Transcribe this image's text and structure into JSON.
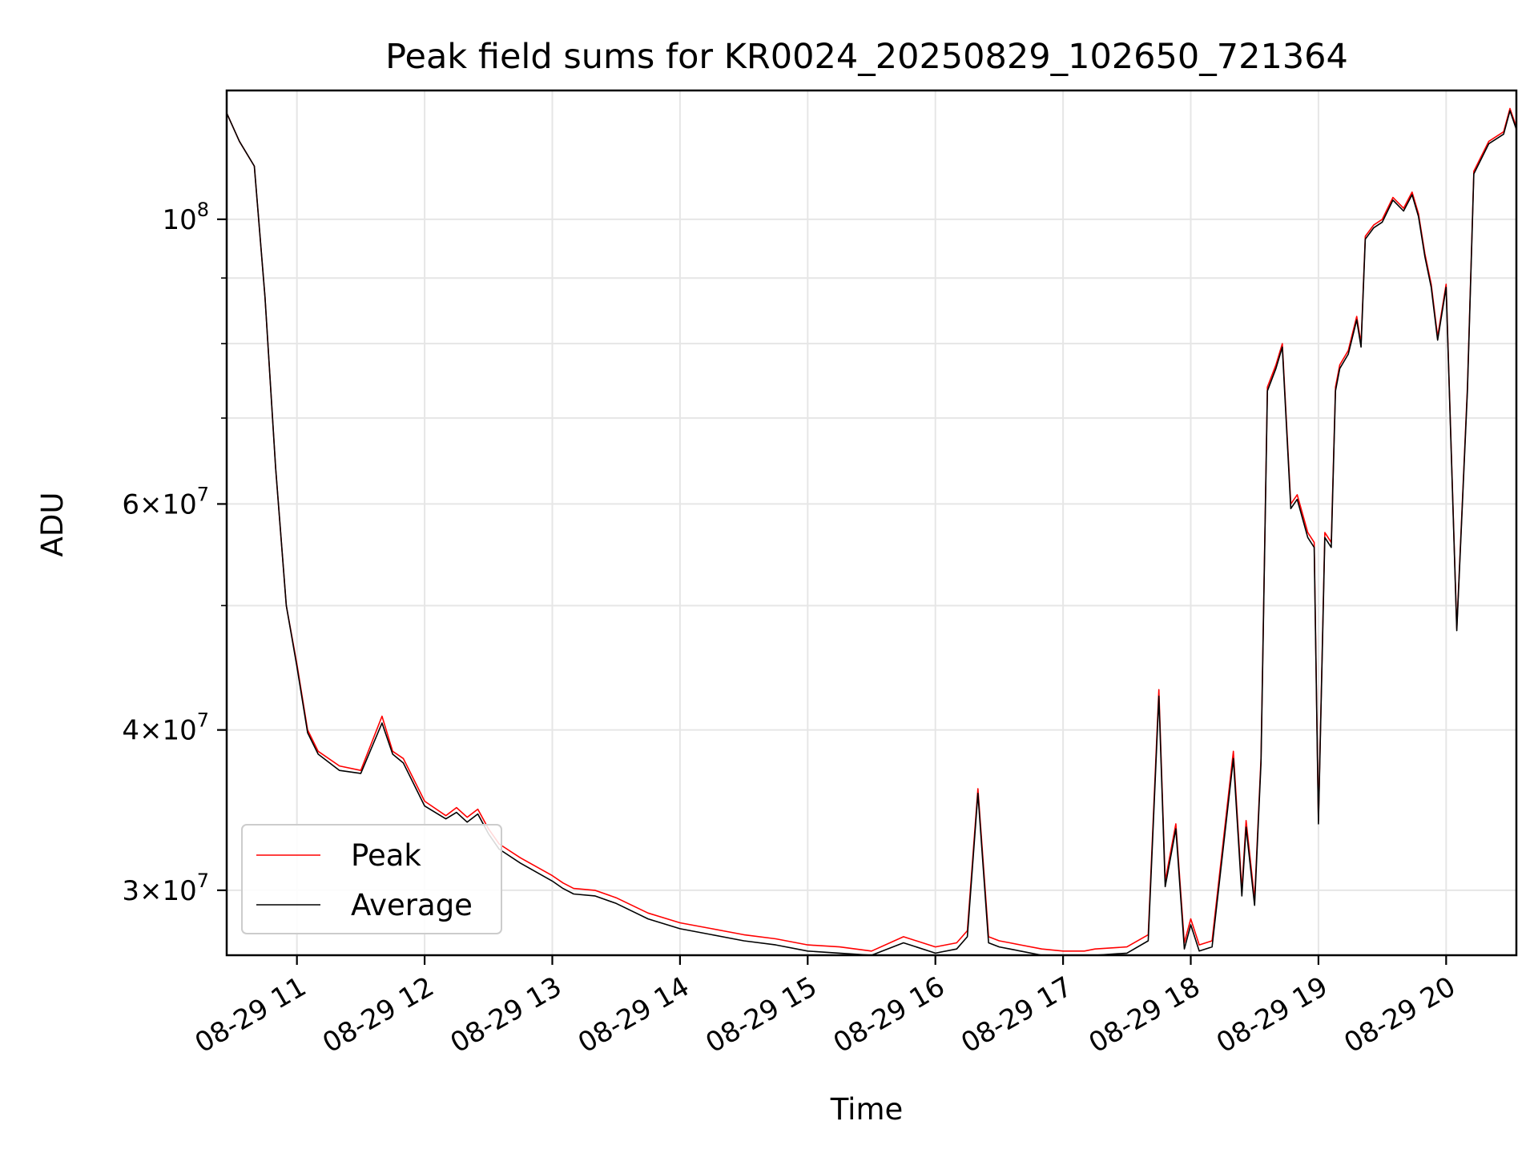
{
  "chart_data": {
    "type": "line",
    "title": "Peak field sums for KR0024_20250829_102650_721364",
    "xlabel": "Time",
    "ylabel": "ADU",
    "yscale": "log",
    "ylim": [
      26700000,
      126000000
    ],
    "xlim": [
      "08-29 10:27",
      "08-29 20:33"
    ],
    "grid": true,
    "legend_position": "lower-left",
    "x_ticks": [
      "08-29 11",
      "08-29 12",
      "08-29 13",
      "08-29 14",
      "08-29 15",
      "08-29 16",
      "08-29 17",
      "08-29 18",
      "08-29 19",
      "08-29 20"
    ],
    "y_ticks": [
      {
        "value": 30000000,
        "mantissa": "3",
        "exp": "7"
      },
      {
        "value": 40000000,
        "mantissa": "4",
        "exp": "7"
      },
      {
        "value": 60000000,
        "mantissa": "6",
        "exp": "7"
      },
      {
        "value": 100000000,
        "mantissa": "",
        "exp": "8"
      }
    ],
    "y_minor_ticks": [
      50000000,
      70000000,
      80000000,
      90000000
    ],
    "series": [
      {
        "name": "Peak",
        "color": "#ff0000",
        "x": [
          "08-29 10:27",
          "08-29 10:33",
          "08-29 10:40",
          "08-29 10:45",
          "08-29 10:50",
          "08-29 10:55",
          "08-29 11:00",
          "08-29 11:05",
          "08-29 11:10",
          "08-29 11:20",
          "08-29 11:30",
          "08-29 11:40",
          "08-29 11:45",
          "08-29 11:50",
          "08-29 12:00",
          "08-29 12:10",
          "08-29 12:15",
          "08-29 12:20",
          "08-29 12:25",
          "08-29 12:30",
          "08-29 12:35",
          "08-29 12:45",
          "08-29 13:00",
          "08-29 13:05",
          "08-29 13:10",
          "08-29 13:20",
          "08-29 13:30",
          "08-29 13:45",
          "08-29 14:00",
          "08-29 14:15",
          "08-29 14:30",
          "08-29 14:45",
          "08-29 15:00",
          "08-29 15:15",
          "08-29 15:30",
          "08-29 15:45",
          "08-29 16:00",
          "08-29 16:10",
          "08-29 16:15",
          "08-29 16:20",
          "08-29 16:25",
          "08-29 16:30",
          "08-29 16:35",
          "08-29 16:40",
          "08-29 16:50",
          "08-29 17:00",
          "08-29 17:10",
          "08-29 17:15",
          "08-29 17:30",
          "08-29 17:40",
          "08-29 17:45",
          "08-29 17:48",
          "08-29 17:53",
          "08-29 17:57",
          "08-29 18:00",
          "08-29 18:04",
          "08-29 18:10",
          "08-29 18:20",
          "08-29 18:24",
          "08-29 18:26",
          "08-29 18:30",
          "08-29 18:33",
          "08-29 18:36",
          "08-29 18:40",
          "08-29 18:43",
          "08-29 18:47",
          "08-29 18:50",
          "08-29 18:55",
          "08-29 18:58",
          "08-29 19:00",
          "08-29 19:03",
          "08-29 19:06",
          "08-29 19:08",
          "08-29 19:10",
          "08-29 19:14",
          "08-29 19:18",
          "08-29 19:20",
          "08-29 19:22",
          "08-29 19:26",
          "08-29 19:30",
          "08-29 19:35",
          "08-29 19:40",
          "08-29 19:44",
          "08-29 19:47",
          "08-29 19:50",
          "08-29 19:53",
          "08-29 19:56",
          "08-29 20:00",
          "08-29 20:05",
          "08-29 20:10",
          "08-29 20:13",
          "08-29 20:20",
          "08-29 20:27",
          "08-29 20:30",
          "08-29 20:33"
        ],
        "y": [
          121000000,
          115000000,
          110000000,
          87000000,
          64000000,
          50000000,
          45000000,
          40000000,
          38500000,
          37500000,
          37200000,
          41000000,
          38500000,
          38000000,
          35200000,
          34300000,
          34800000,
          34200000,
          34700000,
          33500000,
          32600000,
          31800000,
          30800000,
          30400000,
          30100000,
          30000000,
          29600000,
          28800000,
          28300000,
          28000000,
          27700000,
          27500000,
          27200000,
          27100000,
          26900000,
          27600000,
          27100000,
          27300000,
          27900000,
          36000000,
          27600000,
          27400000,
          27300000,
          27200000,
          27000000,
          26900000,
          26900000,
          27000000,
          27100000,
          27700000,
          43000000,
          30500000,
          33800000,
          27300000,
          28500000,
          27200000,
          27400000,
          38500000,
          30000000,
          34000000,
          29500000,
          38000000,
          74000000,
          77000000,
          80000000,
          60000000,
          61000000,
          57000000,
          56000000,
          34000000,
          57000000,
          56000000,
          74000000,
          77000000,
          79000000,
          84000000,
          80000000,
          97000000,
          99000000,
          100000000,
          104000000,
          102000000,
          105000000,
          101000000,
          94000000,
          89000000,
          81000000,
          89000000,
          48000000,
          74000000,
          109000000,
          115000000,
          117000000,
          122000000,
          118000000
        ]
      },
      {
        "name": "Average",
        "color": "#000000",
        "x": [
          "08-29 10:27",
          "08-29 10:33",
          "08-29 10:40",
          "08-29 10:45",
          "08-29 10:50",
          "08-29 10:55",
          "08-29 11:00",
          "08-29 11:05",
          "08-29 11:10",
          "08-29 11:20",
          "08-29 11:30",
          "08-29 11:40",
          "08-29 11:45",
          "08-29 11:50",
          "08-29 12:00",
          "08-29 12:10",
          "08-29 12:15",
          "08-29 12:20",
          "08-29 12:25",
          "08-29 12:30",
          "08-29 12:35",
          "08-29 12:45",
          "08-29 13:00",
          "08-29 13:05",
          "08-29 13:10",
          "08-29 13:20",
          "08-29 13:30",
          "08-29 13:45",
          "08-29 14:00",
          "08-29 14:15",
          "08-29 14:30",
          "08-29 14:45",
          "08-29 15:00",
          "08-29 15:15",
          "08-29 15:30",
          "08-29 15:45",
          "08-29 16:00",
          "08-29 16:10",
          "08-29 16:15",
          "08-29 16:20",
          "08-29 16:25",
          "08-29 16:30",
          "08-29 16:35",
          "08-29 16:40",
          "08-29 16:50",
          "08-29 17:00",
          "08-29 17:10",
          "08-29 17:15",
          "08-29 17:30",
          "08-29 17:40",
          "08-29 17:45",
          "08-29 17:48",
          "08-29 17:53",
          "08-29 17:57",
          "08-29 18:00",
          "08-29 18:04",
          "08-29 18:10",
          "08-29 18:20",
          "08-29 18:24",
          "08-29 18:26",
          "08-29 18:30",
          "08-29 18:33",
          "08-29 18:36",
          "08-29 18:40",
          "08-29 18:43",
          "08-29 18:47",
          "08-29 18:50",
          "08-29 18:55",
          "08-29 18:58",
          "08-29 19:00",
          "08-29 19:03",
          "08-29 19:06",
          "08-29 19:08",
          "08-29 19:10",
          "08-29 19:14",
          "08-29 19:18",
          "08-29 19:20",
          "08-29 19:22",
          "08-29 19:26",
          "08-29 19:30",
          "08-29 19:35",
          "08-29 19:40",
          "08-29 19:44",
          "08-29 19:47",
          "08-29 19:50",
          "08-29 19:53",
          "08-29 19:56",
          "08-29 20:00",
          "08-29 20:05",
          "08-29 20:10",
          "08-29 20:13",
          "08-29 20:20",
          "08-29 20:27",
          "08-29 20:30",
          "08-29 20:33"
        ],
        "y": [
          121000000,
          115000000,
          110000000,
          87000000,
          64000000,
          50000000,
          44800000,
          39800000,
          38300000,
          37200000,
          37000000,
          40500000,
          38300000,
          37700000,
          34900000,
          34100000,
          34500000,
          33900000,
          34400000,
          33200000,
          32300000,
          31500000,
          30500000,
          30100000,
          29800000,
          29700000,
          29300000,
          28500000,
          28000000,
          27700000,
          27400000,
          27200000,
          26900000,
          26800000,
          26600000,
          27300000,
          26800000,
          27000000,
          27600000,
          35700000,
          27300000,
          27100000,
          27000000,
          26900000,
          26700000,
          26600000,
          26600000,
          26700000,
          26800000,
          27400000,
          42500000,
          30200000,
          33500000,
          27000000,
          28200000,
          26900000,
          27100000,
          38000000,
          29700000,
          33600000,
          29200000,
          37700000,
          73500000,
          76500000,
          79500000,
          59500000,
          60500000,
          56500000,
          55500000,
          33800000,
          56500000,
          55500000,
          73500000,
          76500000,
          78500000,
          83500000,
          79500000,
          96500000,
          98500000,
          99500000,
          103500000,
          101500000,
          104500000,
          100500000,
          93500000,
          88500000,
          80500000,
          88500000,
          47800000,
          73500000,
          108500000,
          114500000,
          116500000,
          121500000,
          117500000
        ]
      }
    ]
  }
}
